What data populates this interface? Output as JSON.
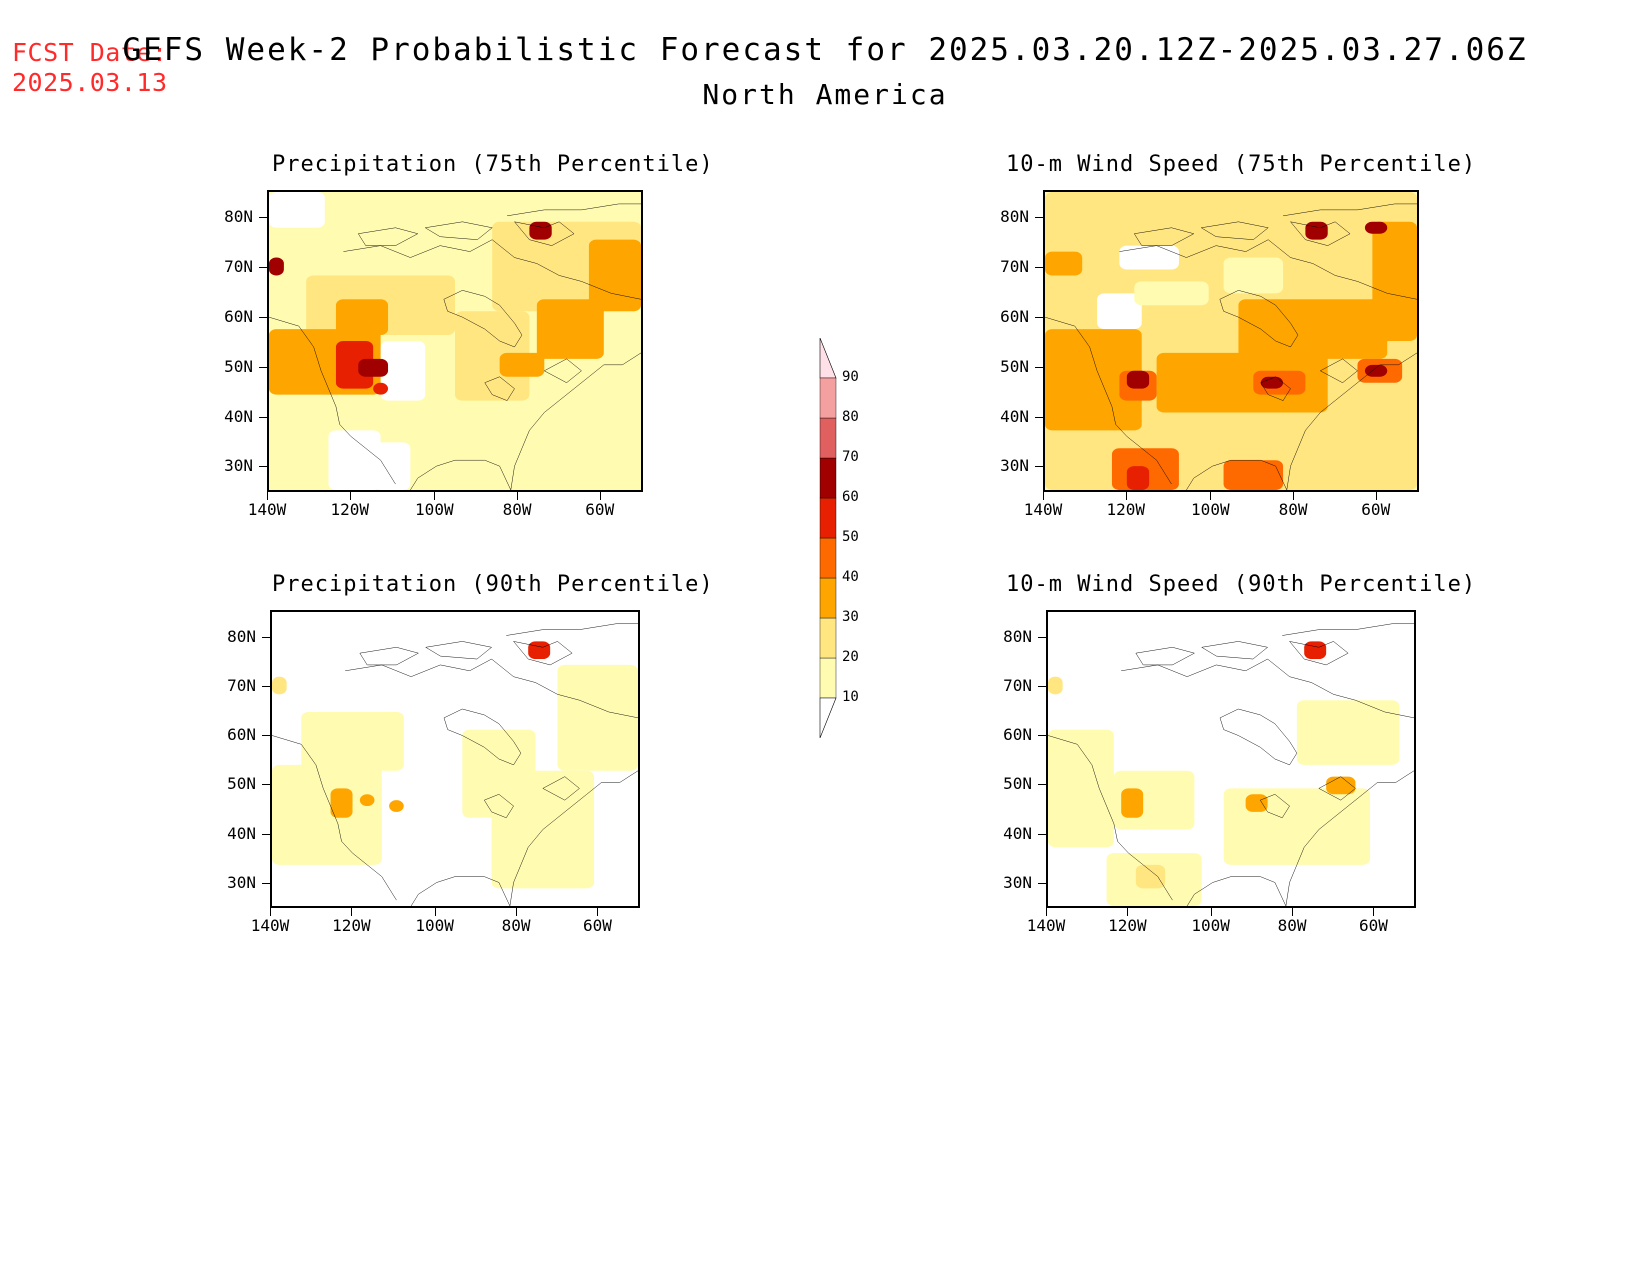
{
  "header": {
    "fcst_label": "FCST Date:",
    "fcst_date": "2025.03.13",
    "title": "GEFS Week-2 Probabilistic Forecast for 2025.03.20.12Z-2025.03.27.06Z",
    "region": "North America"
  },
  "panels": [
    {
      "title": "Precipitation (75th Percentile)"
    },
    {
      "title": "10-m Wind Speed (75th Percentile)"
    },
    {
      "title": "Precipitation (90th Percentile)"
    },
    {
      "title": "10-m Wind Speed (90th Percentile)"
    }
  ],
  "axes": {
    "lat_labels": [
      "80N",
      "70N",
      "60N",
      "50N",
      "40N",
      "30N"
    ],
    "lon_labels": [
      "140W",
      "120W",
      "100W",
      "80W",
      "60W"
    ]
  },
  "colorbar": {
    "levels": [
      "10",
      "20",
      "30",
      "40",
      "50",
      "60",
      "70",
      "80",
      "90"
    ],
    "colors": [
      "#fffbb0",
      "#ffe680",
      "#ffa500",
      "#ff6a00",
      "#e62000",
      "#a00000",
      "#e06060",
      "#f4a0a0",
      "#ffe0e8"
    ]
  }
}
